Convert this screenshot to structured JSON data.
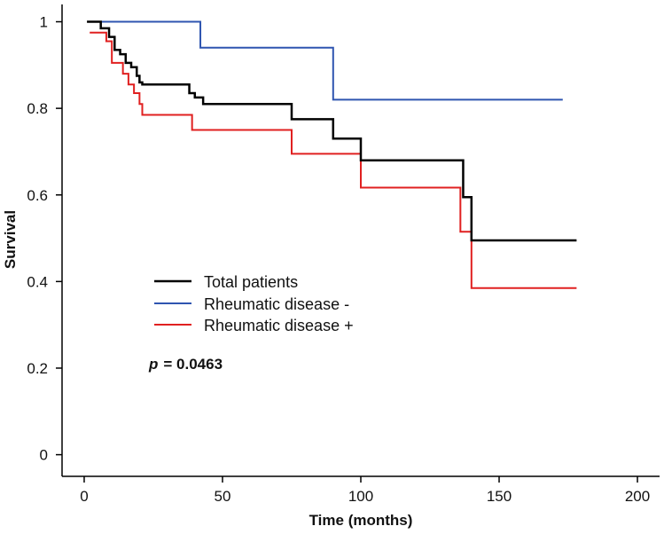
{
  "chart_data": {
    "type": "line",
    "subtype": "kaplan-meier-step",
    "title": "",
    "xlabel": "Time (months)",
    "ylabel": "Survival",
    "xlim": [
      -8,
      208
    ],
    "ylim": [
      -0.05,
      1.04
    ],
    "xticks": [
      0,
      50,
      100,
      150,
      200
    ],
    "yticks": [
      0,
      0.2,
      0.4,
      0.6,
      0.8,
      1
    ],
    "xtick_labels": [
      "0",
      "50",
      "100",
      "150",
      "200"
    ],
    "ytick_labels": [
      "0",
      "0.2",
      "0.4",
      "0.6",
      "0.8",
      "1"
    ],
    "grid": false,
    "legend_position": "center-left",
    "annotation": {
      "label": "p",
      "text": "= 0.0463"
    },
    "series": [
      {
        "name": "Total patients",
        "color": "#000000",
        "x": [
          1,
          6,
          9,
          11,
          13,
          15,
          17,
          19,
          20,
          21,
          38,
          40,
          43,
          75,
          90,
          100,
          137,
          140,
          178
        ],
        "y": [
          1.0,
          0.985,
          0.965,
          0.935,
          0.925,
          0.905,
          0.895,
          0.875,
          0.86,
          0.855,
          0.835,
          0.825,
          0.81,
          0.775,
          0.73,
          0.68,
          0.595,
          0.495,
          0.495
        ]
      },
      {
        "name": "Rheumatic disease -",
        "color": "#2f55b0",
        "x": [
          2,
          42,
          90,
          173
        ],
        "y": [
          1.0,
          0.94,
          0.82,
          0.82
        ]
      },
      {
        "name": "Rheumatic disease +",
        "color": "#e02020",
        "x": [
          2,
          8,
          10,
          14,
          16,
          18,
          20,
          21,
          39,
          75,
          100,
          136,
          140,
          178
        ],
        "y": [
          0.975,
          0.955,
          0.905,
          0.88,
          0.855,
          0.835,
          0.81,
          0.785,
          0.75,
          0.695,
          0.617,
          0.515,
          0.385,
          0.385
        ]
      }
    ]
  }
}
